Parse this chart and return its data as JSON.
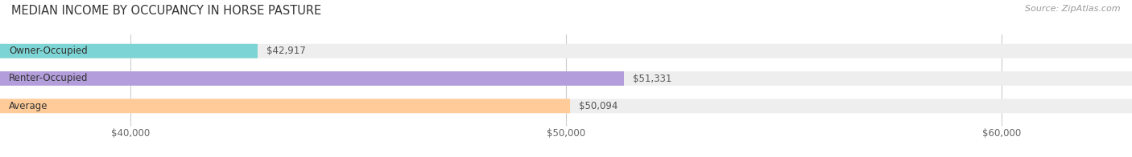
{
  "title": "MEDIAN INCOME BY OCCUPANCY IN HORSE PASTURE",
  "source": "Source: ZipAtlas.com",
  "categories": [
    "Owner-Occupied",
    "Renter-Occupied",
    "Average"
  ],
  "values": [
    42917,
    51331,
    50094
  ],
  "labels": [
    "$42,917",
    "$51,331",
    "$50,094"
  ],
  "bar_colors": [
    "#7dd4d4",
    "#b39ddb",
    "#ffcc99"
  ],
  "bar_bg_color": "#eeeeee",
  "xlim_min": 37000,
  "xlim_max": 63000,
  "xticks": [
    40000,
    50000,
    60000
  ],
  "xtick_labels": [
    "$40,000",
    "$50,000",
    "$60,000"
  ],
  "title_fontsize": 10.5,
  "label_fontsize": 8.5,
  "source_fontsize": 8,
  "bar_height": 0.52,
  "background_color": "#ffffff"
}
